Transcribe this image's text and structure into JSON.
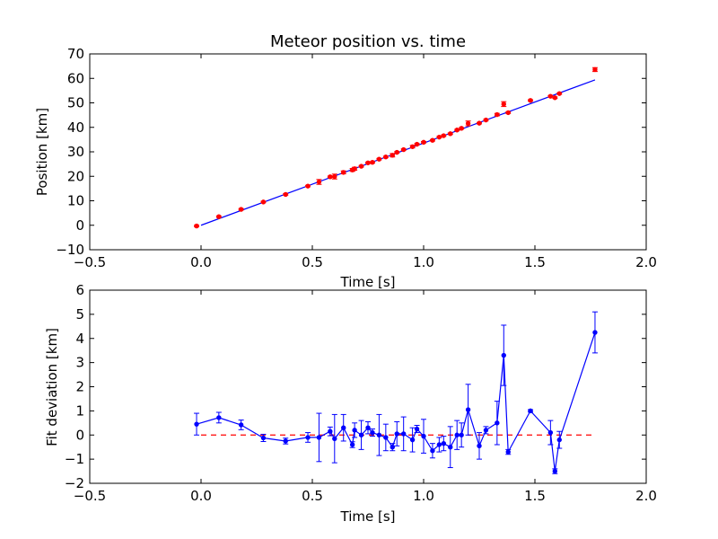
{
  "chart_data": [
    {
      "type": "scatter",
      "title": "Meteor position vs. time",
      "xlabel": "Time [s]",
      "ylabel": "Position [km]",
      "xlim": [
        -0.5,
        2.0
      ],
      "ylim": [
        -10,
        70
      ],
      "xticks": [
        -0.5,
        0.0,
        0.5,
        1.0,
        1.5,
        2.0
      ],
      "xtick_labels": [
        "−0.5",
        "0.0",
        "0.5",
        "1.0",
        "1.5",
        "2.0"
      ],
      "yticks": [
        -10,
        0,
        10,
        20,
        30,
        40,
        50,
        60,
        70
      ],
      "ytick_labels": [
        "−10",
        "0",
        "10",
        "20",
        "30",
        "40",
        "50",
        "60",
        "70"
      ],
      "grid": false,
      "colors": {
        "points": "#ff0000",
        "fit_line": "#0000ff"
      },
      "fit_line": {
        "x": [
          0.0,
          1.77
        ],
        "y": [
          0.0,
          59.4
        ]
      },
      "series": [
        {
          "points": [
            {
              "x": -0.02,
              "y": -0.3,
              "err": 0.3
            },
            {
              "x": 0.08,
              "y": 3.5,
              "err": 0.3
            },
            {
              "x": 0.18,
              "y": 6.5,
              "err": 0.3
            },
            {
              "x": 0.28,
              "y": 9.5,
              "err": 0.3
            },
            {
              "x": 0.38,
              "y": 12.6,
              "err": 0.3
            },
            {
              "x": 0.48,
              "y": 16.0,
              "err": 0.3
            },
            {
              "x": 0.53,
              "y": 17.7,
              "err": 1.0
            },
            {
              "x": 0.58,
              "y": 19.8,
              "err": 0.3
            },
            {
              "x": 0.6,
              "y": 19.9,
              "err": 1.0
            },
            {
              "x": 0.64,
              "y": 21.6,
              "err": 0.6
            },
            {
              "x": 0.68,
              "y": 22.6,
              "err": 0.6
            },
            {
              "x": 0.69,
              "y": 23.1,
              "err": 0.6
            },
            {
              "x": 0.72,
              "y": 24.1,
              "err": 0.3
            },
            {
              "x": 0.75,
              "y": 25.5,
              "err": 0.3
            },
            {
              "x": 0.77,
              "y": 25.7,
              "err": 0.3
            },
            {
              "x": 0.8,
              "y": 27.0,
              "err": 0.3
            },
            {
              "x": 0.83,
              "y": 27.9,
              "err": 0.3
            },
            {
              "x": 0.86,
              "y": 28.6,
              "err": 0.7
            },
            {
              "x": 0.88,
              "y": 29.8,
              "err": 0.3
            },
            {
              "x": 0.91,
              "y": 30.9,
              "err": 0.3
            },
            {
              "x": 0.95,
              "y": 32.1,
              "err": 0.5
            },
            {
              "x": 0.97,
              "y": 33.1,
              "err": 0.3
            },
            {
              "x": 1.0,
              "y": 33.9,
              "err": 0.3
            },
            {
              "x": 1.04,
              "y": 34.7,
              "err": 0.3
            },
            {
              "x": 1.07,
              "y": 36.0,
              "err": 0.3
            },
            {
              "x": 1.09,
              "y": 36.6,
              "err": 0.3
            },
            {
              "x": 1.12,
              "y": 37.4,
              "err": 0.3
            },
            {
              "x": 1.15,
              "y": 38.9,
              "err": 0.3
            },
            {
              "x": 1.17,
              "y": 39.6,
              "err": 0.3
            },
            {
              "x": 1.2,
              "y": 41.6,
              "err": 1.0
            },
            {
              "x": 1.25,
              "y": 41.7,
              "err": 0.3
            },
            {
              "x": 1.28,
              "y": 43.0,
              "err": 0.3
            },
            {
              "x": 1.33,
              "y": 45.2,
              "err": 0.5
            },
            {
              "x": 1.36,
              "y": 49.5,
              "err": 1.0
            },
            {
              "x": 1.38,
              "y": 46.0,
              "err": 0.3
            },
            {
              "x": 1.48,
              "y": 51.0,
              "err": 0.3
            },
            {
              "x": 1.57,
              "y": 52.7,
              "err": 0.3
            },
            {
              "x": 1.59,
              "y": 52.1,
              "err": 0.3
            },
            {
              "x": 1.61,
              "y": 53.8,
              "err": 0.3
            },
            {
              "x": 1.77,
              "y": 63.6,
              "err": 0.8
            }
          ]
        }
      ]
    },
    {
      "type": "line",
      "title": "",
      "xlabel": "Time [s]",
      "ylabel": "Fit deviation [km]",
      "xlim": [
        -0.5,
        2.0
      ],
      "ylim": [
        -2,
        6
      ],
      "xticks": [
        -0.5,
        0.0,
        0.5,
        1.0,
        1.5,
        2.0
      ],
      "xtick_labels": [
        "−0.5",
        "0.0",
        "0.5",
        "1.0",
        "1.5",
        "2.0"
      ],
      "yticks": [
        -2,
        -1,
        0,
        1,
        2,
        3,
        4,
        5,
        6
      ],
      "ytick_labels": [
        "−2",
        "−1",
        "0",
        "1",
        "2",
        "3",
        "4",
        "5",
        "6"
      ],
      "grid": false,
      "colors": {
        "series": "#0000ff",
        "zero_line": "#ff0000"
      },
      "zero_line": {
        "x": [
          0.0,
          1.77
        ],
        "y": [
          0,
          0
        ],
        "style": "dashed"
      },
      "series": [
        {
          "points": [
            {
              "x": -0.02,
              "y": 0.45,
              "err": 0.45
            },
            {
              "x": 0.08,
              "y": 0.72,
              "err": 0.22
            },
            {
              "x": 0.18,
              "y": 0.42,
              "err": 0.2
            },
            {
              "x": 0.28,
              "y": -0.12,
              "err": 0.15
            },
            {
              "x": 0.38,
              "y": -0.25,
              "err": 0.12
            },
            {
              "x": 0.48,
              "y": -0.1,
              "err": 0.2
            },
            {
              "x": 0.53,
              "y": -0.1,
              "err": 1.0
            },
            {
              "x": 0.58,
              "y": 0.15,
              "err": 0.18
            },
            {
              "x": 0.6,
              "y": -0.15,
              "err": 1.0
            },
            {
              "x": 0.64,
              "y": 0.3,
              "err": 0.55
            },
            {
              "x": 0.68,
              "y": -0.4,
              "err": 0.12
            },
            {
              "x": 0.69,
              "y": 0.2,
              "err": 0.3
            },
            {
              "x": 0.72,
              "y": 0.0,
              "err": 0.6
            },
            {
              "x": 0.75,
              "y": 0.3,
              "err": 0.25
            },
            {
              "x": 0.77,
              "y": 0.1,
              "err": 0.15
            },
            {
              "x": 0.8,
              "y": 0.0,
              "err": 0.85
            },
            {
              "x": 0.83,
              "y": -0.1,
              "err": 0.55
            },
            {
              "x": 0.86,
              "y": -0.5,
              "err": 0.15
            },
            {
              "x": 0.88,
              "y": 0.05,
              "err": 0.5
            },
            {
              "x": 0.91,
              "y": 0.05,
              "err": 0.7
            },
            {
              "x": 0.95,
              "y": -0.2,
              "err": 0.5
            },
            {
              "x": 0.97,
              "y": 0.25,
              "err": 0.15
            },
            {
              "x": 1.0,
              "y": -0.05,
              "err": 0.7
            },
            {
              "x": 1.04,
              "y": -0.65,
              "err": 0.3
            },
            {
              "x": 1.07,
              "y": -0.4,
              "err": 0.3
            },
            {
              "x": 1.09,
              "y": -0.35,
              "err": 0.3
            },
            {
              "x": 1.12,
              "y": -0.5,
              "err": 0.85
            },
            {
              "x": 1.15,
              "y": 0.0,
              "err": 0.6
            },
            {
              "x": 1.17,
              "y": 0.0,
              "err": 0.5
            },
            {
              "x": 1.2,
              "y": 1.05,
              "err": 1.05
            },
            {
              "x": 1.25,
              "y": -0.45,
              "err": 0.55
            },
            {
              "x": 1.28,
              "y": 0.2,
              "err": 0.15
            },
            {
              "x": 1.33,
              "y": 0.5,
              "err": 0.9
            },
            {
              "x": 1.36,
              "y": 3.3,
              "err": 1.25
            },
            {
              "x": 1.38,
              "y": -0.7,
              "err": 0.1
            },
            {
              "x": 1.48,
              "y": 1.0,
              "err": 0.05
            },
            {
              "x": 1.57,
              "y": 0.1,
              "err": 0.5
            },
            {
              "x": 1.59,
              "y": -1.5,
              "err": 0.1
            },
            {
              "x": 1.61,
              "y": -0.2,
              "err": 0.35
            },
            {
              "x": 1.77,
              "y": 4.25,
              "err": 0.85
            }
          ]
        }
      ]
    }
  ]
}
